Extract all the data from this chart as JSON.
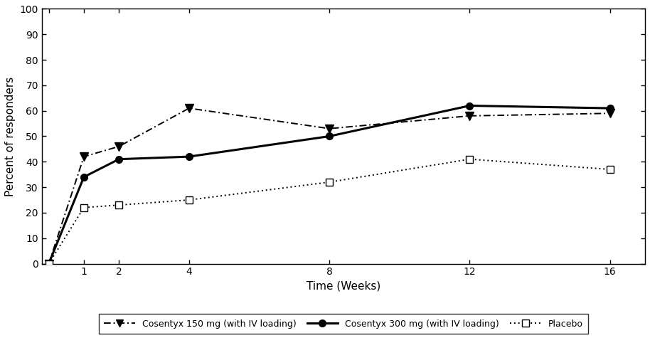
{
  "weeks": [
    0,
    1,
    2,
    4,
    8,
    12,
    16
  ],
  "cosentyx_150": [
    0,
    42,
    46,
    61,
    53,
    58,
    59
  ],
  "cosentyx_300": [
    0,
    34,
    41,
    42,
    50,
    62,
    61
  ],
  "placebo": [
    0,
    22,
    23,
    25,
    32,
    41,
    37
  ],
  "ylabel": "Percent of responders",
  "xlabel": "Time (Weeks)",
  "ylim": [
    0,
    100
  ],
  "yticks": [
    0,
    10,
    20,
    30,
    40,
    50,
    60,
    70,
    80,
    90,
    100
  ],
  "xtick_values": [
    0,
    1,
    2,
    4,
    8,
    12,
    16
  ],
  "xtick_labels": [
    "",
    "1",
    "2",
    "4",
    "8",
    "12",
    "16"
  ],
  "legend_labels": [
    "Cosentyx 150 mg (with IV loading)",
    "Cosentyx 300 mg (with IV loading)",
    "Placebo"
  ],
  "color_150": "#000000",
  "color_300": "#000000",
  "color_placebo": "#000000",
  "background_color": "#ffffff"
}
